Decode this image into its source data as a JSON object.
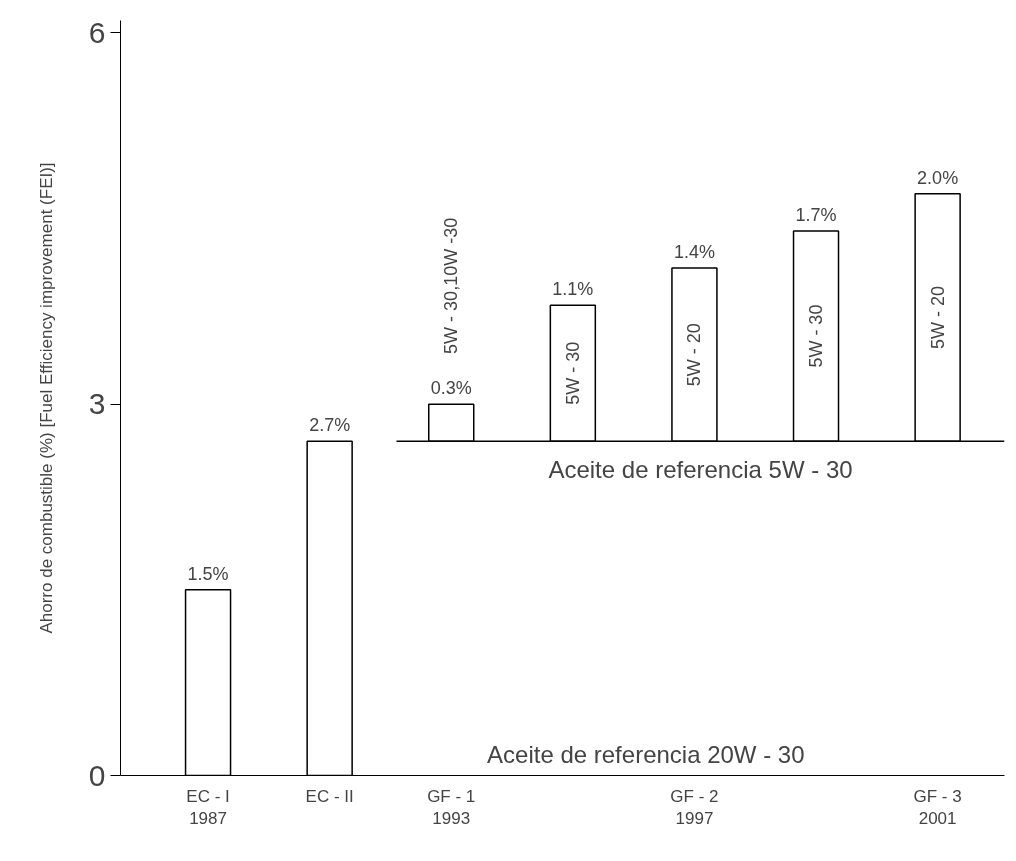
{
  "chart_data": {
    "type": "bar",
    "ylabel": "Ahorro de combustible (%) [Fuel Efficiency improvement (FEI)]",
    "categories": [
      "EC - I\n1987",
      "EC - II",
      "GF - 1\n1993",
      null,
      "GF - 2\n1997",
      null,
      "GF - 3\n2001"
    ],
    "values": [
      1.5,
      2.7,
      0.3,
      1.1,
      1.4,
      1.7,
      2.0
    ],
    "base": [
      0,
      0,
      2.7,
      2.7,
      2.7,
      2.7,
      2.7
    ],
    "color": "#ffffff",
    "value_labels": [
      "1.5%",
      "2.7%",
      "0.3%",
      "1.1%",
      "1.4%",
      "1.7%",
      "2.0%"
    ],
    "ylim": [
      0,
      6.1
    ],
    "yticks": [
      0,
      3,
      6
    ],
    "ref_lines": [
      {
        "axis": "y",
        "value": 2.7,
        "label": "Aceite de referencia 5W - 30",
        "color": "#000000"
      }
    ],
    "annotations": [
      "5W - 30,10W -30",
      "5W - 30",
      "5W - 20",
      "5W - 30",
      "5W - 20",
      "Aceite de referencia 20W - 30"
    ],
    "grid": false
  }
}
